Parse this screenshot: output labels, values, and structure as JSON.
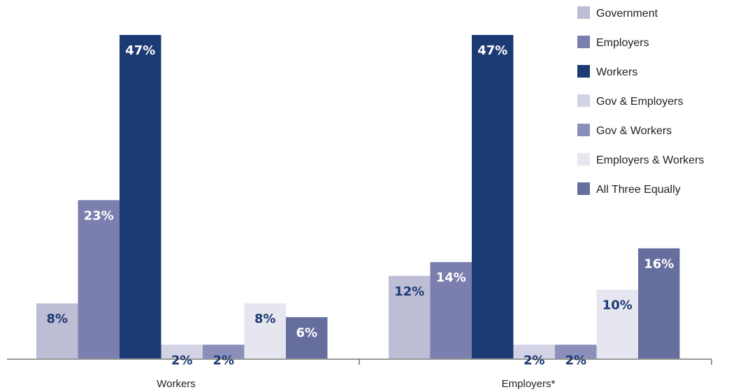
{
  "chart_data": {
    "type": "bar",
    "categories": [
      "Workers",
      "Employers*"
    ],
    "series": [
      {
        "name": "Government",
        "color": "#bdbdd6",
        "values": [
          8,
          12
        ],
        "labels": [
          "8%",
          "12%"
        ],
        "label_color": "#1c3a73"
      },
      {
        "name": "Employers",
        "color": "#7b7fad",
        "values": [
          23,
          14
        ],
        "labels": [
          "23%",
          "14%"
        ],
        "label_color": "#ffffff"
      },
      {
        "name": "Workers",
        "color": "#1c3a73",
        "values": [
          47,
          47
        ],
        "labels": [
          "47%",
          "47%"
        ],
        "label_color": "#ffffff"
      },
      {
        "name": "Gov & Employers",
        "color": "#d3d3e6",
        "values": [
          2,
          2
        ],
        "labels": [
          "2%",
          "2%"
        ],
        "label_color": "#1c3a73"
      },
      {
        "name": "Gov & Workers",
        "color": "#8b90bb",
        "values": [
          2,
          2
        ],
        "labels": [
          "2%",
          "2%"
        ],
        "label_color": "#1c3a73"
      },
      {
        "name": "Employers & Workers",
        "color": "#e6e6f0",
        "values": [
          8,
          10
        ],
        "labels": [
          "8%",
          "10%"
        ],
        "label_color": "#1c3a73"
      },
      {
        "name": "All Three Equally",
        "color": "#666e9e",
        "values": [
          6,
          16
        ],
        "labels": [
          "6%",
          "16%"
        ],
        "label_color": "#ffffff"
      }
    ],
    "ylim": [
      0,
      47
    ],
    "grid": false,
    "legend": "right",
    "title": "",
    "xlabel": "",
    "ylabel": ""
  }
}
